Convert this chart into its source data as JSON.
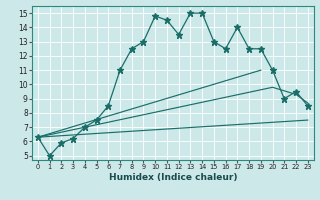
{
  "xlabel": "Humidex (Indice chaleur)",
  "bg_color": "#cce8e8",
  "line_color": "#1a6e6a",
  "xlim": [
    -0.5,
    23.5
  ],
  "ylim": [
    4.7,
    15.5
  ],
  "xticks": [
    0,
    1,
    2,
    3,
    4,
    5,
    6,
    7,
    8,
    9,
    10,
    11,
    12,
    13,
    14,
    15,
    16,
    17,
    18,
    19,
    20,
    21,
    22,
    23
  ],
  "yticks": [
    5,
    6,
    7,
    8,
    9,
    10,
    11,
    12,
    13,
    14,
    15
  ],
  "main_x": [
    0,
    1,
    2,
    3,
    4,
    5,
    6,
    7,
    8,
    9,
    10,
    11,
    12,
    13,
    14,
    15,
    16,
    17,
    18,
    19,
    20,
    21,
    22,
    23
  ],
  "main_y": [
    6.3,
    5.0,
    5.9,
    6.2,
    7.0,
    7.5,
    8.5,
    11.0,
    12.5,
    13.0,
    14.8,
    14.5,
    13.5,
    15.0,
    15.0,
    13.0,
    12.5,
    14.0,
    12.5,
    12.5,
    11.0,
    9.0,
    9.5,
    8.5
  ],
  "fan_lines": [
    {
      "x": [
        0,
        19
      ],
      "y": [
        6.3,
        11.0
      ]
    },
    {
      "x": [
        0,
        20,
        22,
        23
      ],
      "y": [
        6.3,
        9.8,
        9.3,
        8.7
      ]
    },
    {
      "x": [
        0,
        23
      ],
      "y": [
        6.3,
        7.5
      ]
    }
  ]
}
